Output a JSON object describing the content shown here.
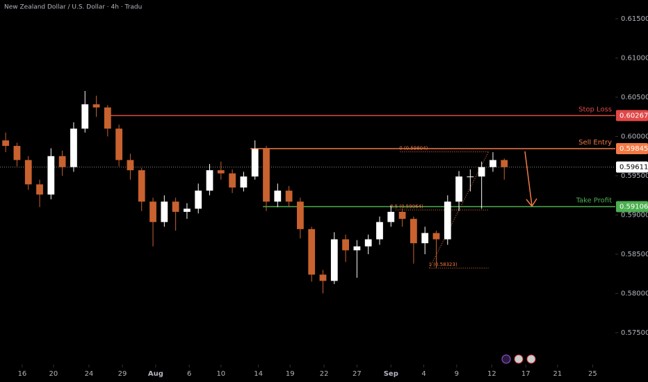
{
  "chart_data": {
    "type": "candlestick",
    "title": "New Zealand Dollar / U.S. Dollar · 4h · Tradu",
    "xlim": [
      0,
      54.3
    ],
    "ylim": [
      0.57093,
      0.61739
    ],
    "up_color": "#ffffff",
    "down_color": "#c8622f",
    "xticks": [
      {
        "value": 1.96,
        "label": "16"
      },
      {
        "value": 4.72,
        "label": "20"
      },
      {
        "value": 7.85,
        "label": "24"
      },
      {
        "value": 10.8,
        "label": "29"
      },
      {
        "value": 13.74,
        "label": "Aug"
      },
      {
        "value": 16.7,
        "label": "6"
      },
      {
        "value": 19.5,
        "label": "10"
      },
      {
        "value": 22.8,
        "label": "14"
      },
      {
        "value": 25.6,
        "label": "19"
      },
      {
        "value": 28.6,
        "label": "22"
      },
      {
        "value": 31.5,
        "label": "27"
      },
      {
        "value": 34.5,
        "label": "Sep"
      },
      {
        "value": 37.4,
        "label": "4"
      },
      {
        "value": 40.3,
        "label": "9"
      },
      {
        "value": 43.4,
        "label": "12"
      },
      {
        "value": 46.4,
        "label": "17"
      },
      {
        "value": 49.2,
        "label": "21"
      },
      {
        "value": 52.3,
        "label": "25"
      }
    ],
    "yticks": [
      {
        "value": 0.615,
        "label": "0.61500"
      },
      {
        "value": 0.61,
        "label": "0.61000"
      },
      {
        "value": 0.605,
        "label": "0.60500"
      },
      {
        "value": 0.6,
        "label": "0.60000"
      },
      {
        "value": 0.595,
        "label": "0.59500"
      },
      {
        "value": 0.59,
        "label": "0.59000"
      },
      {
        "value": 0.585,
        "label": "0.58500"
      },
      {
        "value": 0.58,
        "label": "0.58000"
      },
      {
        "value": 0.575,
        "label": "0.57500"
      }
    ],
    "candles": [
      {
        "o": 0.5995,
        "h": 0.6005,
        "l": 0.598,
        "c": 0.5988
      },
      {
        "o": 0.5988,
        "h": 0.5992,
        "l": 0.5962,
        "c": 0.597
      },
      {
        "o": 0.597,
        "h": 0.5975,
        "l": 0.5932,
        "c": 0.5939
      },
      {
        "o": 0.5939,
        "h": 0.5945,
        "l": 0.591,
        "c": 0.5926
      },
      {
        "o": 0.5926,
        "h": 0.5985,
        "l": 0.592,
        "c": 0.5975
      },
      {
        "o": 0.5975,
        "h": 0.5982,
        "l": 0.595,
        "c": 0.5961
      },
      {
        "o": 0.5961,
        "h": 0.6018,
        "l": 0.5955,
        "c": 0.601
      },
      {
        "o": 0.601,
        "h": 0.6058,
        "l": 0.6005,
        "c": 0.6041
      },
      {
        "o": 0.6041,
        "h": 0.6052,
        "l": 0.6025,
        "c": 0.6037
      },
      {
        "o": 0.6037,
        "h": 0.604,
        "l": 0.6,
        "c": 0.601
      },
      {
        "o": 0.601,
        "h": 0.6015,
        "l": 0.5962,
        "c": 0.597
      },
      {
        "o": 0.597,
        "h": 0.5978,
        "l": 0.5945,
        "c": 0.5957
      },
      {
        "o": 0.5957,
        "h": 0.596,
        "l": 0.5905,
        "c": 0.5917
      },
      {
        "o": 0.5917,
        "h": 0.5922,
        "l": 0.586,
        "c": 0.5891
      },
      {
        "o": 0.5891,
        "h": 0.5925,
        "l": 0.5885,
        "c": 0.5917
      },
      {
        "o": 0.5917,
        "h": 0.5922,
        "l": 0.588,
        "c": 0.5904
      },
      {
        "o": 0.5904,
        "h": 0.5915,
        "l": 0.5895,
        "c": 0.5908
      },
      {
        "o": 0.5908,
        "h": 0.594,
        "l": 0.5902,
        "c": 0.5931
      },
      {
        "o": 0.5931,
        "h": 0.5965,
        "l": 0.5925,
        "c": 0.5957
      },
      {
        "o": 0.5957,
        "h": 0.5968,
        "l": 0.5945,
        "c": 0.5953
      },
      {
        "o": 0.5953,
        "h": 0.5958,
        "l": 0.5928,
        "c": 0.5935
      },
      {
        "o": 0.5935,
        "h": 0.5955,
        "l": 0.593,
        "c": 0.5949
      },
      {
        "o": 0.5949,
        "h": 0.5995,
        "l": 0.5945,
        "c": 0.5984
      },
      {
        "o": 0.5984,
        "h": 0.5988,
        "l": 0.5905,
        "c": 0.5917
      },
      {
        "o": 0.5917,
        "h": 0.594,
        "l": 0.591,
        "c": 0.5931
      },
      {
        "o": 0.5931,
        "h": 0.5937,
        "l": 0.591,
        "c": 0.5917
      },
      {
        "o": 0.5917,
        "h": 0.5922,
        "l": 0.587,
        "c": 0.5882
      },
      {
        "o": 0.5882,
        "h": 0.5885,
        "l": 0.5815,
        "c": 0.5824
      },
      {
        "o": 0.5824,
        "h": 0.583,
        "l": 0.58,
        "c": 0.5816
      },
      {
        "o": 0.5816,
        "h": 0.5878,
        "l": 0.5812,
        "c": 0.5869
      },
      {
        "o": 0.5869,
        "h": 0.5875,
        "l": 0.584,
        "c": 0.5855
      },
      {
        "o": 0.5855,
        "h": 0.5868,
        "l": 0.582,
        "c": 0.586
      },
      {
        "o": 0.586,
        "h": 0.5875,
        "l": 0.585,
        "c": 0.5869
      },
      {
        "o": 0.5869,
        "h": 0.5898,
        "l": 0.5862,
        "c": 0.5891
      },
      {
        "o": 0.5891,
        "h": 0.5912,
        "l": 0.5885,
        "c": 0.5904
      },
      {
        "o": 0.5904,
        "h": 0.5908,
        "l": 0.5885,
        "c": 0.5895
      },
      {
        "o": 0.5895,
        "h": 0.5898,
        "l": 0.5838,
        "c": 0.5864
      },
      {
        "o": 0.5864,
        "h": 0.5885,
        "l": 0.585,
        "c": 0.5877
      },
      {
        "o": 0.5877,
        "h": 0.588,
        "l": 0.5832,
        "c": 0.5869
      },
      {
        "o": 0.5869,
        "h": 0.5925,
        "l": 0.5862,
        "c": 0.5917
      },
      {
        "o": 0.5917,
        "h": 0.5956,
        "l": 0.5905,
        "c": 0.5949
      },
      {
        "o": 0.5949,
        "h": 0.5958,
        "l": 0.593,
        "c": 0.5949
      },
      {
        "o": 0.5949,
        "h": 0.5968,
        "l": 0.5908,
        "c": 0.5961
      },
      {
        "o": 0.5961,
        "h": 0.598,
        "l": 0.5955,
        "c": 0.597
      },
      {
        "o": 0.597,
        "h": 0.5972,
        "l": 0.5945,
        "c": 0.5961
      }
    ],
    "levels": [
      {
        "name": "Stop Loss",
        "value": 0.60267,
        "color": "#e04848",
        "from": 9.7
      },
      {
        "name": "Sell Entry",
        "value": 0.59845,
        "color": "#f47a45",
        "from": 22.1
      },
      {
        "name": "Take Profit",
        "value": 0.59106,
        "color": "#4caf50",
        "from": 23.2
      }
    ],
    "last_price": 0.59611,
    "fib": {
      "color": "#f47a45",
      "to": 43.1,
      "levels": [
        {
          "label": "0 (0.59804)",
          "value": 0.59804,
          "from": 35.3
        },
        {
          "label": "0.5 (0.59064)",
          "value": 0.59064,
          "from": 34.9
        },
        {
          "label": "1 (0.58323)",
          "value": 0.58323,
          "from": 37.9
        }
      ]
    }
  }
}
